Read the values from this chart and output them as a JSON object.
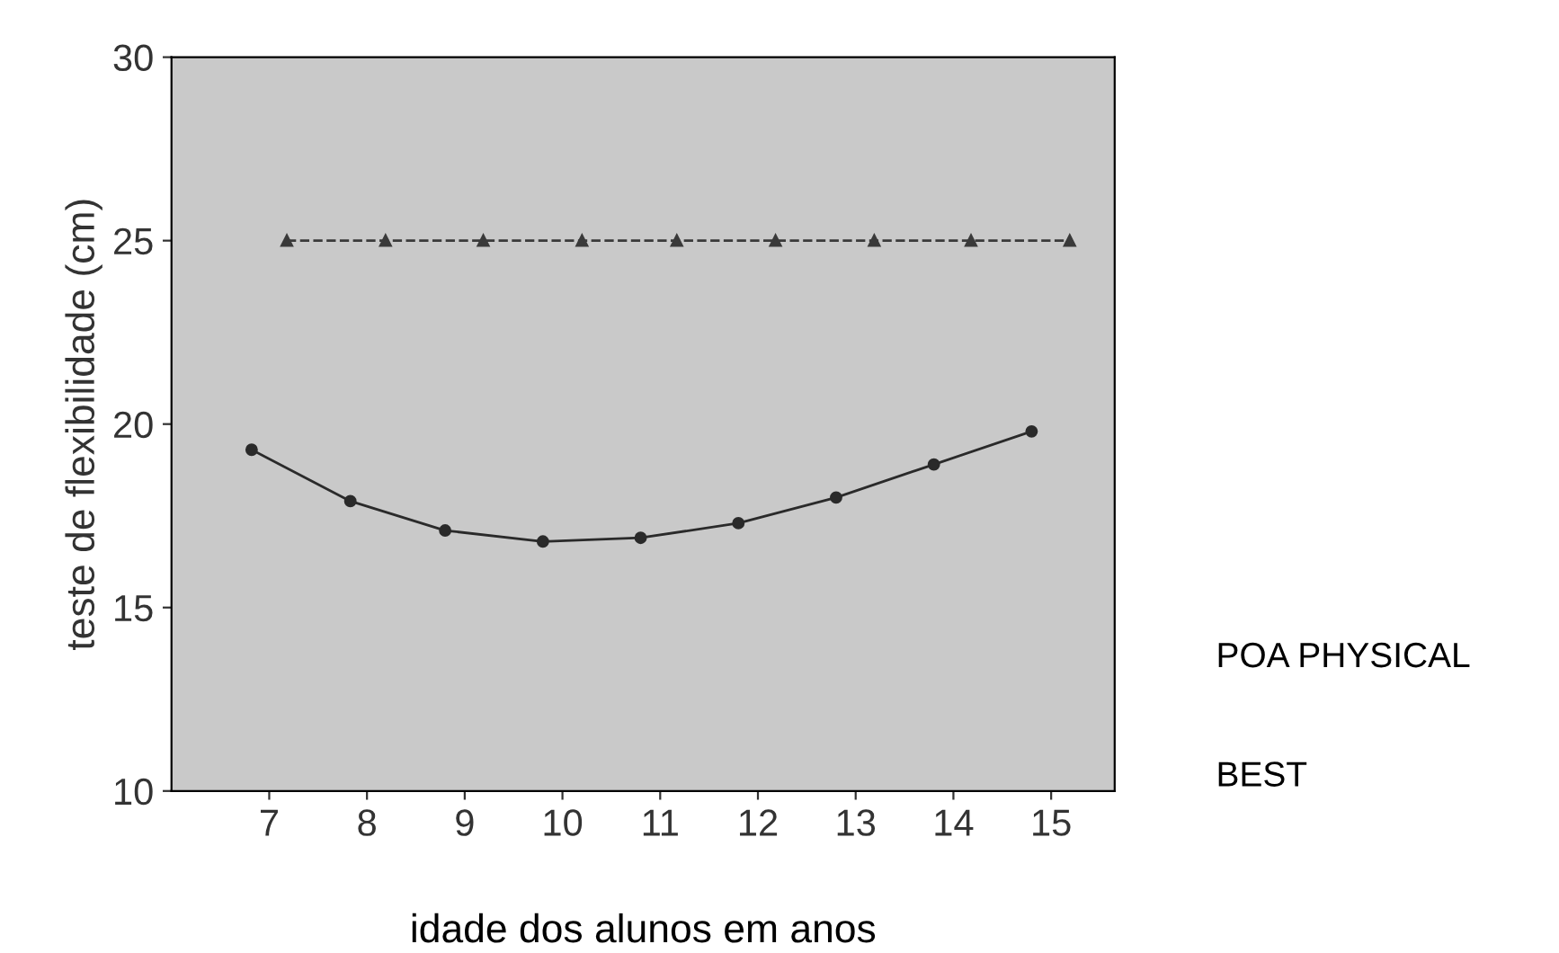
{
  "chart_data": {
    "type": "line",
    "ylabel": "teste de flexibilidade (cm)",
    "xlabel": "idade dos alunos em anos",
    "xlim": [
      6,
      15.65
    ],
    "xticks": [
      7,
      8,
      9,
      10,
      11,
      12,
      13,
      14,
      15
    ],
    "ylim": [
      10,
      30
    ],
    "yticks": [
      10,
      15,
      20,
      25,
      30
    ],
    "grid": false,
    "legend": false,
    "series": [
      {
        "color": "#2a2a2a",
        "marker": "circle",
        "line_style": "solid",
        "x": [
          6.82,
          7.83,
          8.8,
          9.8,
          10.8,
          11.8,
          12.8,
          13.8,
          14.8
        ],
        "values": [
          19.3,
          17.9,
          17.1,
          16.8,
          16.9,
          17.3,
          18.0,
          18.9,
          19.8
        ]
      },
      {
        "color": "#3a3a3a",
        "marker": "triangle",
        "line_style": "dashed",
        "x": [
          7.18,
          8.19,
          9.19,
          10.2,
          11.17,
          12.18,
          13.19,
          14.18,
          15.19
        ],
        "values": [
          25,
          25,
          25,
          25,
          25,
          25,
          25,
          25,
          25
        ]
      }
    ],
    "annotations": [
      "POA PHYSICAL",
      "BEST"
    ]
  }
}
